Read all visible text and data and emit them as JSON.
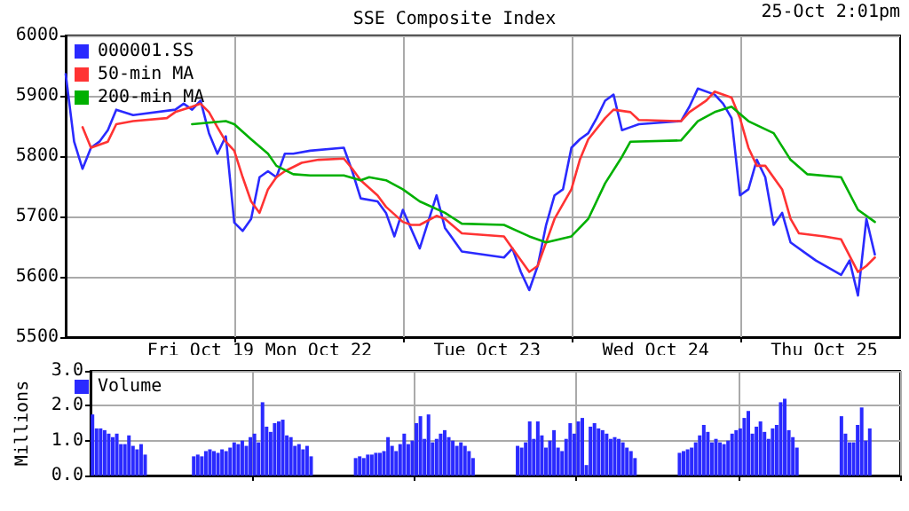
{
  "chart_data": [
    {
      "type": "line",
      "title": "SSE Composite Index",
      "annotations": [
        "25-Oct 2:01pm"
      ],
      "categories": [
        null,
        null,
        null,
        null,
        null,
        null,
        null,
        null,
        null,
        null,
        null,
        null,
        null,
        null,
        null,
        null,
        "Fri Oct 19",
        null,
        null,
        null,
        null,
        null,
        null,
        null,
        null,
        null,
        null,
        null,
        null,
        null,
        "Mon Oct 22",
        null,
        null,
        null,
        null,
        null,
        null,
        null,
        null,
        null,
        null,
        null,
        null,
        null,
        null,
        null,
        null,
        null,
        null,
        null,
        "Tue Oct 23",
        null,
        null,
        null,
        null,
        null,
        null,
        null,
        null,
        null,
        null,
        null,
        null,
        null,
        null,
        null,
        null,
        null,
        null,
        null,
        "Wed Oct 24",
        null,
        null,
        null,
        null,
        null,
        null,
        null,
        null,
        null,
        null,
        null,
        null,
        null,
        null,
        null,
        null,
        null,
        null,
        null,
        "Thu Oct 25",
        null,
        null,
        null,
        null,
        null,
        null,
        null,
        null,
        null
      ],
      "ylim": [
        5500,
        6000
      ],
      "yticks": [
        5500,
        5600,
        5700,
        5800,
        5900,
        6000
      ],
      "grid": true,
      "legend": "top left",
      "marker": "none",
      "series": [
        {
          "name": "000001.SS",
          "color": "#2a2aff",
          "values": [
            5936,
            5824,
            5779,
            5814,
            5824,
            5843,
            5877,
            null,
            5868,
            null,
            null,
            null,
            null,
            5877,
            5887,
            5877,
            5892,
            5838,
            5804,
            5833,
            5690,
            5676,
            5696,
            5765,
            5775,
            5765,
            5804,
            5804,
            null,
            5809,
            null,
            null,
            null,
            5814,
            5775,
            5730,
            null,
            5725,
            5706,
            5667,
            5711,
            null,
            5647,
            null,
            5735,
            5681,
            null,
            5642,
            null,
            null,
            null,
            null,
            5632,
            5647,
            5608,
            5578,
            5618,
            5686,
            5735,
            5745,
            5814,
            5828,
            5838,
            5863,
            5892,
            5902,
            5843,
            5848,
            5853,
            null,
            null,
            null,
            null,
            5858,
            5882,
            5912,
            null,
            5902,
            5887,
            5863,
            5735,
            5745,
            5794,
            5765,
            5686,
            5706,
            5657,
            null,
            5637,
            5627,
            null,
            null,
            5603,
            5627,
            5569,
            5696,
            5637,
            null,
            null,
            null
          ]
        },
        {
          "name": "50-min MA",
          "color": "#ff3333",
          "values": [
            null,
            null,
            5848,
            5814,
            null,
            5824,
            5853,
            null,
            5858,
            null,
            null,
            null,
            5863,
            5873,
            null,
            5882,
            5887,
            5873,
            5848,
            5824,
            5809,
            5765,
            5725,
            5706,
            5745,
            5765,
            5775,
            null,
            5789,
            null,
            5794,
            null,
            null,
            5796,
            5779,
            5760,
            null,
            5735,
            5716,
            null,
            5691,
            5686,
            5686,
            null,
            5701,
            5696,
            null,
            5672,
            null,
            null,
            null,
            null,
            5667,
            5647,
            null,
            5608,
            5618,
            5657,
            5696,
            null,
            5745,
            5794,
            5828,
            null,
            5863,
            5877,
            null,
            5873,
            5860,
            null,
            null,
            null,
            null,
            5858,
            5873,
            null,
            5892,
            5907,
            null,
            5897,
            5863,
            5814,
            5784,
            5784,
            null,
            5745,
            5696,
            5672,
            null,
            null,
            5667,
            null,
            5662,
            null,
            5608,
            5618,
            5632,
            null,
            null,
            null
          ]
        },
        {
          "name": "200-min MA",
          "color": "#00b000",
          "values": [
            null,
            null,
            null,
            null,
            null,
            null,
            null,
            null,
            null,
            null,
            null,
            null,
            null,
            null,
            null,
            5853,
            null,
            null,
            null,
            5858,
            5853,
            null,
            5828,
            null,
            5804,
            5784,
            null,
            5770,
            null,
            5768,
            null,
            null,
            null,
            5768,
            null,
            5760,
            5765,
            null,
            5760,
            null,
            5745,
            null,
            5725,
            null,
            null,
            5706,
            null,
            5688,
            null,
            null,
            null,
            null,
            5686,
            null,
            null,
            5667,
            null,
            5657,
            null,
            null,
            5667,
            null,
            5696,
            null,
            5755,
            null,
            5799,
            5824,
            null,
            null,
            null,
            null,
            null,
            5826,
            null,
            5858,
            null,
            5873,
            null,
            5882,
            null,
            5858,
            null,
            null,
            5838,
            null,
            5794,
            null,
            5770,
            null,
            null,
            null,
            5765,
            null,
            5711,
            null,
            5691,
            null,
            null,
            null
          ]
        }
      ]
    },
    {
      "type": "bar",
      "ylabel": "Millions",
      "categories": [
        null,
        null,
        null,
        null,
        null,
        null,
        null,
        null,
        null,
        null,
        null,
        null,
        null,
        null,
        null,
        null,
        null,
        null,
        null,
        null,
        null,
        null,
        null,
        null,
        null,
        null,
        null,
        null,
        null,
        null,
        null,
        null,
        null,
        null,
        null,
        null,
        null,
        null,
        null,
        null,
        null,
        null,
        null,
        null,
        null,
        null,
        null,
        null,
        null,
        null,
        null,
        null,
        null,
        null,
        null,
        null,
        null,
        null,
        null,
        null,
        null,
        null,
        null,
        null,
        null,
        null,
        null,
        null,
        null,
        null,
        null,
        null,
        null,
        null,
        null,
        null,
        null,
        null,
        null,
        null,
        null,
        null,
        null,
        null,
        null,
        null,
        null,
        null,
        null,
        null,
        null,
        null,
        null,
        null,
        null,
        null,
        null,
        null,
        null,
        null,
        null,
        null,
        null,
        null,
        null,
        null,
        null,
        null,
        null,
        null,
        null,
        null,
        null,
        null,
        null,
        null,
        null,
        null,
        null,
        null,
        null,
        null,
        null,
        null,
        null,
        null,
        null,
        null,
        null,
        null,
        null,
        null,
        null,
        null,
        null,
        null,
        null,
        null,
        null,
        null,
        null,
        null,
        null,
        null,
        null,
        null,
        null,
        null,
        null,
        null,
        null,
        null,
        null,
        null,
        null,
        null,
        null,
        null,
        null,
        null,
        null,
        null,
        null,
        null,
        null,
        null,
        null,
        null,
        null,
        null,
        null,
        null,
        null,
        null,
        null,
        null,
        null,
        null,
        null,
        null,
        null,
        null,
        null,
        null,
        null,
        null,
        null,
        null,
        null,
        null,
        null,
        null,
        null,
        null,
        null,
        null,
        null,
        null,
        null,
        null
      ],
      "ylim": [
        0,
        3
      ],
      "yticks": [
        {
          "value": 0,
          "label": "0.0"
        },
        {
          "value": 1,
          "label": "1.0"
        },
        {
          "value": 2,
          "label": "2.0"
        },
        {
          "value": 3,
          "label": "3.0"
        }
      ],
      "grid": true,
      "legend": "top left",
      "tick_labels": "y",
      "series": [
        {
          "name": "Volume",
          "color": "#2a2aff",
          "values": [
            1.75,
            1.35,
            1.35,
            1.3,
            1.2,
            1.1,
            1.2,
            0.9,
            0.9,
            1.15,
            0.85,
            0.75,
            0.9,
            0.6,
            null,
            null,
            null,
            null,
            null,
            null,
            null,
            null,
            null,
            null,
            null,
            0.55,
            0.6,
            0.55,
            0.7,
            0.75,
            0.7,
            0.65,
            0.75,
            0.7,
            0.8,
            0.95,
            0.9,
            1.0,
            0.85,
            1.1,
            1.2,
            0.95,
            2.1,
            1.4,
            1.25,
            1.5,
            1.55,
            1.6,
            1.15,
            1.1,
            0.85,
            0.9,
            0.75,
            0.85,
            0.55,
            null,
            null,
            null,
            null,
            null,
            null,
            null,
            null,
            null,
            null,
            0.5,
            0.55,
            0.5,
            0.6,
            0.6,
            0.65,
            0.65,
            0.7,
            1.1,
            0.85,
            0.7,
            0.9,
            1.2,
            0.9,
            1.0,
            1.5,
            1.7,
            1.05,
            1.75,
            0.95,
            1.05,
            1.2,
            1.3,
            1.1,
            1.0,
            0.85,
            0.95,
            0.85,
            0.7,
            0.5,
            null,
            null,
            null,
            null,
            null,
            null,
            null,
            null,
            null,
            null,
            0.85,
            0.8,
            0.95,
            1.55,
            1.05,
            1.55,
            1.15,
            0.8,
            1.0,
            1.3,
            0.8,
            0.7,
            1.05,
            1.5,
            1.2,
            1.55,
            1.65,
            0.3,
            1.4,
            1.5,
            1.35,
            1.3,
            1.2,
            1.05,
            1.1,
            1.05,
            0.95,
            0.8,
            0.7,
            0.5,
            null,
            null,
            null,
            null,
            null,
            null,
            null,
            null,
            null,
            null,
            0.65,
            0.7,
            0.75,
            0.8,
            0.95,
            1.15,
            1.45,
            1.25,
            0.95,
            1.05,
            0.95,
            0.9,
            1.0,
            1.2,
            1.3,
            1.35,
            1.65,
            1.85,
            1.2,
            1.4,
            1.55,
            1.25,
            1.05,
            1.35,
            1.45,
            2.1,
            2.2,
            1.3,
            1.1,
            0.8,
            null,
            null,
            null,
            null,
            null,
            null,
            null,
            null,
            null,
            null,
            1.7,
            1.2,
            0.95,
            0.95,
            1.45,
            1.95,
            1.0,
            1.35,
            null,
            null,
            null,
            null,
            null,
            null,
            null
          ]
        }
      ]
    }
  ]
}
